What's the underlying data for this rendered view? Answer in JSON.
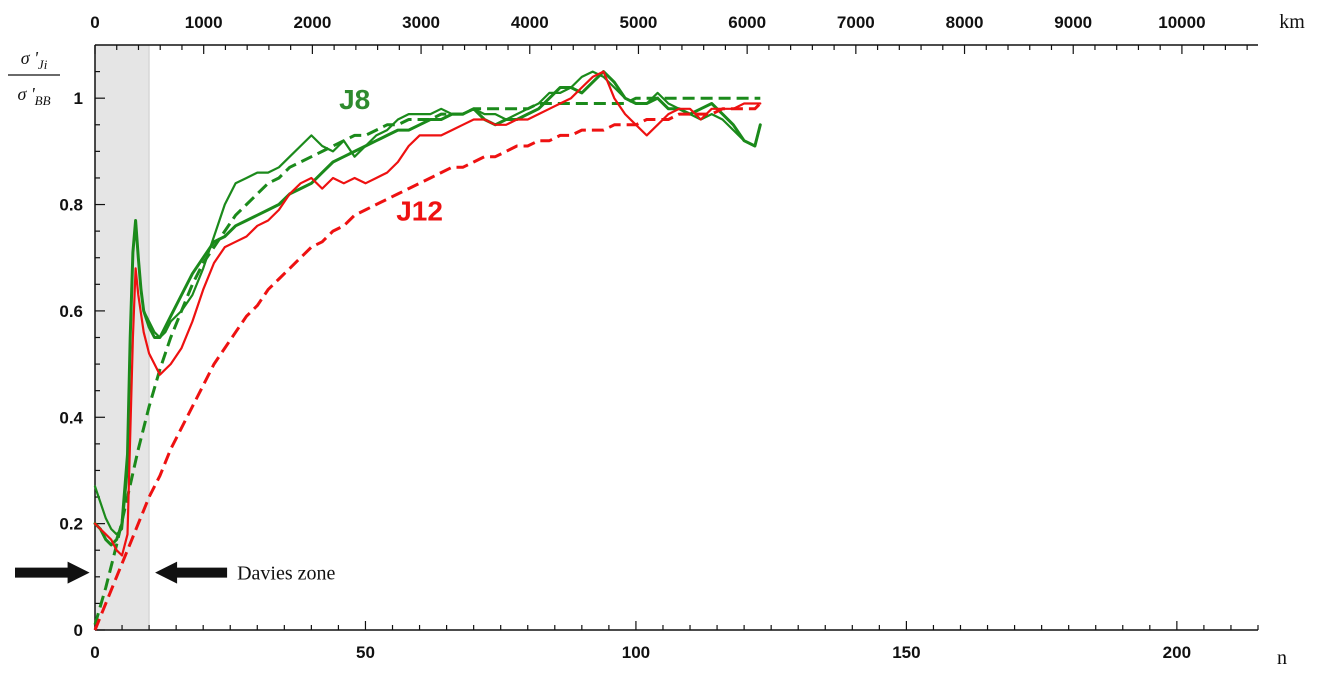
{
  "chart_data": {
    "type": "line",
    "title": "",
    "xlabel": "n",
    "x2label": "km",
    "ylabel_numerator": "σ 'Ji",
    "ylabel_denominator": "σ 'BB",
    "xlim": [
      0,
      215
    ],
    "ylim": [
      0,
      1.1
    ],
    "x2lim": [
      0,
      10700
    ],
    "x_ticks": [
      0,
      50,
      100,
      150,
      200
    ],
    "x_tick_labels": [
      "0",
      "50",
      "100",
      "150",
      "200"
    ],
    "y_ticks": [
      0,
      0.2,
      0.4,
      0.6,
      0.8,
      1
    ],
    "y_tick_labels": [
      "0",
      "0.2",
      "0.4",
      "0.6",
      "0.8",
      "1"
    ],
    "x2_ticks": [
      0,
      1000,
      2000,
      3000,
      4000,
      5000,
      6000,
      7000,
      8000,
      9000,
      10000
    ],
    "x2_tick_labels": [
      "0",
      "1000",
      "2000",
      "3000",
      "4000",
      "5000",
      "6000",
      "7000",
      "8000",
      "9000",
      "10000"
    ],
    "grid": false,
    "shaded_region": {
      "x": [
        0,
        10
      ],
      "label": "Davies zone",
      "color": "#e5e5e5"
    },
    "colors": {
      "J8": "#1b8a1b",
      "J12": "#ee1111",
      "axis": "#111111"
    },
    "series_labels": [
      {
        "text": "J8",
        "color": "#2e8b2e",
        "x": 48,
        "y": 0.98
      },
      {
        "text": "J12",
        "color": "#ee1111",
        "x": 60,
        "y": 0.77
      }
    ],
    "series": [
      {
        "name": "J8",
        "style": "solid-thick",
        "color": "#1b8a1b",
        "x": [
          0,
          1,
          2,
          3,
          4,
          5,
          6,
          6.5,
          7,
          7.5,
          8,
          8.5,
          9,
          10,
          11,
          12,
          13,
          14,
          16,
          18,
          20,
          22,
          24,
          26,
          28,
          30,
          32,
          34,
          36,
          38,
          40,
          42,
          44,
          46,
          48,
          50,
          52,
          54,
          56,
          58,
          60,
          62,
          64,
          66,
          68,
          70,
          72,
          74,
          76,
          78,
          80,
          82,
          84,
          86,
          88,
          90,
          92,
          94,
          96,
          98,
          100,
          102,
          104,
          106,
          108,
          110,
          112,
          114,
          116,
          118,
          120,
          122,
          123
        ],
        "y": [
          0.2,
          0.19,
          0.17,
          0.16,
          0.17,
          0.2,
          0.33,
          0.55,
          0.71,
          0.77,
          0.7,
          0.64,
          0.6,
          0.57,
          0.55,
          0.55,
          0.57,
          0.59,
          0.63,
          0.67,
          0.7,
          0.73,
          0.74,
          0.76,
          0.77,
          0.78,
          0.79,
          0.8,
          0.82,
          0.83,
          0.84,
          0.86,
          0.88,
          0.89,
          0.9,
          0.91,
          0.92,
          0.93,
          0.94,
          0.94,
          0.95,
          0.96,
          0.96,
          0.97,
          0.97,
          0.98,
          0.96,
          0.95,
          0.96,
          0.96,
          0.97,
          0.98,
          1.0,
          1.02,
          1.02,
          1.01,
          1.03,
          1.05,
          1.03,
          1.0,
          0.99,
          0.99,
          1.0,
          0.98,
          0.98,
          0.97,
          0.98,
          0.99,
          0.97,
          0.95,
          0.92,
          0.91,
          0.95
        ]
      },
      {
        "name": "J8-thin",
        "style": "solid-thin",
        "color": "#1b8a1b",
        "x": [
          0,
          1,
          2,
          3,
          4,
          5,
          6,
          6.5,
          7,
          7.5,
          8,
          8.5,
          9,
          10,
          11,
          12,
          13,
          14,
          16,
          18,
          20,
          22,
          24,
          26,
          28,
          30,
          32,
          34,
          36,
          38,
          40,
          42,
          44,
          46,
          48,
          50,
          52,
          54,
          56,
          58,
          60,
          62,
          64,
          66,
          68,
          70,
          72,
          74,
          76,
          78,
          80,
          82,
          84,
          86,
          88,
          90,
          92,
          94,
          96,
          98,
          100,
          102,
          104,
          106,
          108,
          110,
          112,
          114,
          116,
          118,
          120,
          122,
          123
        ],
        "y": [
          0.27,
          0.24,
          0.21,
          0.19,
          0.18,
          0.19,
          0.3,
          0.55,
          0.71,
          0.77,
          0.7,
          0.64,
          0.6,
          0.58,
          0.56,
          0.55,
          0.56,
          0.58,
          0.6,
          0.63,
          0.68,
          0.74,
          0.8,
          0.84,
          0.85,
          0.86,
          0.86,
          0.87,
          0.89,
          0.91,
          0.93,
          0.91,
          0.9,
          0.92,
          0.89,
          0.91,
          0.93,
          0.94,
          0.96,
          0.97,
          0.97,
          0.97,
          0.98,
          0.97,
          0.97,
          0.98,
          0.97,
          0.97,
          0.96,
          0.97,
          0.98,
          0.99,
          1.01,
          1.01,
          1.02,
          1.04,
          1.05,
          1.04,
          1.02,
          1.0,
          0.99,
          0.99,
          1.01,
          0.99,
          0.98,
          0.97,
          0.96,
          0.97,
          0.96,
          0.94,
          0.92,
          0.91,
          0.95
        ]
      },
      {
        "name": "J8-model",
        "style": "dashed",
        "color": "#1b8a1b",
        "x": [
          0,
          2,
          4,
          6,
          8,
          10,
          12,
          14,
          16,
          18,
          20,
          22,
          24,
          26,
          28,
          30,
          32,
          34,
          36,
          38,
          40,
          42,
          44,
          46,
          48,
          50,
          52,
          54,
          56,
          58,
          60,
          62,
          64,
          66,
          68,
          70,
          72,
          74,
          76,
          78,
          80,
          82,
          84,
          86,
          88,
          90,
          92,
          94,
          96,
          98,
          100,
          102,
          104,
          106,
          108,
          110,
          112,
          114,
          116,
          118,
          120,
          122,
          123
        ],
        "y": [
          0.01,
          0.08,
          0.16,
          0.25,
          0.34,
          0.42,
          0.49,
          0.55,
          0.6,
          0.65,
          0.69,
          0.72,
          0.75,
          0.78,
          0.8,
          0.82,
          0.84,
          0.85,
          0.87,
          0.88,
          0.89,
          0.9,
          0.91,
          0.92,
          0.93,
          0.93,
          0.94,
          0.95,
          0.95,
          0.96,
          0.96,
          0.96,
          0.97,
          0.97,
          0.97,
          0.98,
          0.98,
          0.98,
          0.98,
          0.98,
          0.98,
          0.99,
          0.99,
          0.99,
          0.99,
          0.99,
          0.99,
          0.99,
          0.99,
          0.99,
          1.0,
          1.0,
          1.0,
          1.0,
          1.0,
          1.0,
          1.0,
          1.0,
          1.0,
          1.0,
          1.0,
          1.0,
          1.0
        ]
      },
      {
        "name": "J12",
        "style": "solid-thin",
        "color": "#ee1111",
        "x": [
          0,
          1,
          2,
          3,
          4,
          5,
          6,
          7,
          7.5,
          8,
          9,
          10,
          11,
          12,
          13,
          14,
          16,
          18,
          20,
          22,
          24,
          26,
          28,
          30,
          32,
          34,
          36,
          38,
          40,
          42,
          44,
          46,
          48,
          50,
          52,
          54,
          56,
          58,
          60,
          62,
          64,
          66,
          68,
          70,
          72,
          74,
          76,
          78,
          80,
          82,
          84,
          86,
          88,
          90,
          92,
          94,
          96,
          98,
          100,
          102,
          104,
          106,
          108,
          110,
          112,
          114,
          116,
          118,
          120,
          122,
          123
        ],
        "y": [
          0.2,
          0.19,
          0.18,
          0.17,
          0.15,
          0.14,
          0.18,
          0.55,
          0.68,
          0.63,
          0.56,
          0.52,
          0.5,
          0.48,
          0.49,
          0.5,
          0.53,
          0.58,
          0.64,
          0.69,
          0.72,
          0.73,
          0.74,
          0.76,
          0.77,
          0.79,
          0.82,
          0.84,
          0.85,
          0.83,
          0.85,
          0.84,
          0.85,
          0.84,
          0.85,
          0.86,
          0.88,
          0.91,
          0.93,
          0.93,
          0.93,
          0.94,
          0.95,
          0.96,
          0.96,
          0.95,
          0.95,
          0.96,
          0.96,
          0.97,
          0.98,
          0.99,
          1.0,
          1.02,
          1.04,
          1.05,
          1.0,
          0.97,
          0.95,
          0.93,
          0.95,
          0.97,
          0.98,
          0.98,
          0.96,
          0.98,
          0.98,
          0.98,
          0.99,
          0.99,
          0.99
        ]
      },
      {
        "name": "J12-model",
        "style": "dashed",
        "color": "#ee1111",
        "x": [
          0,
          2,
          4,
          6,
          8,
          10,
          12,
          14,
          16,
          18,
          20,
          22,
          24,
          26,
          28,
          30,
          32,
          34,
          36,
          38,
          40,
          42,
          44,
          46,
          48,
          50,
          52,
          54,
          56,
          58,
          60,
          62,
          64,
          66,
          68,
          70,
          72,
          74,
          76,
          78,
          80,
          82,
          84,
          86,
          88,
          90,
          92,
          94,
          96,
          98,
          100,
          102,
          104,
          106,
          108,
          110,
          112,
          114,
          116,
          118,
          120,
          122,
          123
        ],
        "y": [
          0.0,
          0.05,
          0.1,
          0.15,
          0.2,
          0.25,
          0.29,
          0.34,
          0.38,
          0.42,
          0.46,
          0.5,
          0.53,
          0.56,
          0.59,
          0.61,
          0.64,
          0.66,
          0.68,
          0.7,
          0.72,
          0.73,
          0.75,
          0.76,
          0.78,
          0.79,
          0.8,
          0.81,
          0.82,
          0.83,
          0.84,
          0.85,
          0.86,
          0.87,
          0.87,
          0.88,
          0.89,
          0.89,
          0.9,
          0.91,
          0.91,
          0.92,
          0.92,
          0.93,
          0.93,
          0.94,
          0.94,
          0.94,
          0.95,
          0.95,
          0.95,
          0.96,
          0.96,
          0.96,
          0.97,
          0.97,
          0.97,
          0.97,
          0.98,
          0.98,
          0.98,
          0.98,
          0.99
        ]
      }
    ]
  }
}
